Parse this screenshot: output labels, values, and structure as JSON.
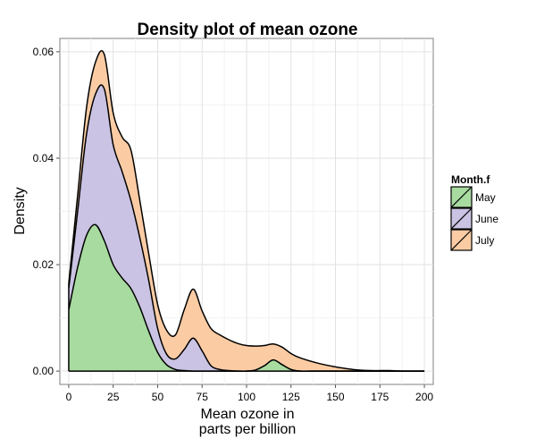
{
  "chart_data": {
    "type": "area",
    "stacked": true,
    "title": "Density plot of mean ozone",
    "xlabel": [
      "Mean ozone in",
      "parts per billion"
    ],
    "ylabel": "Density",
    "xlim": [
      -5,
      205
    ],
    "ylim": [
      -0.0025,
      0.0625
    ],
    "x_ticks": [
      0,
      25,
      50,
      75,
      100,
      125,
      150,
      175,
      200
    ],
    "x_tick_labels": [
      "0",
      "25",
      "50",
      "75",
      "100",
      "125",
      "150",
      "175",
      "200"
    ],
    "y_ticks": [
      0.0,
      0.02,
      0.04,
      0.06
    ],
    "y_tick_labels": [
      "0.00",
      "0.02",
      "0.04",
      "0.06"
    ],
    "grid": true,
    "legend_position": "right",
    "legend_title": "Month.f",
    "x": [
      0,
      5,
      10,
      15,
      20,
      25,
      30,
      35,
      40,
      45,
      50,
      55,
      60,
      65,
      70,
      75,
      80,
      85,
      90,
      95,
      100,
      105,
      110,
      115,
      120,
      125,
      130,
      140,
      150,
      160,
      170,
      180,
      190,
      200
    ],
    "series": [
      {
        "name": "May",
        "color": "#a8dba0",
        "values": [
          0.0115,
          0.0195,
          0.0255,
          0.0275,
          0.0245,
          0.02,
          0.0175,
          0.0155,
          0.012,
          0.0075,
          0.0035,
          0.0012,
          0.0003,
          0.0001,
          0,
          0,
          0,
          0,
          0,
          0,
          0,
          0.0002,
          0.001,
          0.0021,
          0.0012,
          0.0003,
          0,
          0,
          0,
          0,
          0,
          0,
          0,
          0
        ]
      },
      {
        "name": "June",
        "color": "#cbc3e3",
        "values": [
          0.004,
          0.0105,
          0.019,
          0.0245,
          0.0285,
          0.0225,
          0.02,
          0.0165,
          0.013,
          0.0095,
          0.0045,
          0.002,
          0.002,
          0.004,
          0.0062,
          0.0038,
          0.001,
          0.0003,
          0.0001,
          0,
          0,
          0,
          0,
          0,
          0,
          0,
          0,
          0,
          0,
          0,
          0,
          0,
          0,
          0
        ]
      },
      {
        "name": "July",
        "color": "#fbcca4",
        "values": [
          0.001,
          0.003,
          0.005,
          0.006,
          0.0065,
          0.006,
          0.0065,
          0.0095,
          0.007,
          0.005,
          0.0045,
          0.0045,
          0.0045,
          0.0075,
          0.0092,
          0.0075,
          0.007,
          0.0065,
          0.0058,
          0.0052,
          0.0048,
          0.0045,
          0.0038,
          0.003,
          0.0033,
          0.003,
          0.0025,
          0.0015,
          0.0008,
          0.0003,
          0.0001,
          0.0001,
          0,
          0
        ]
      }
    ]
  }
}
